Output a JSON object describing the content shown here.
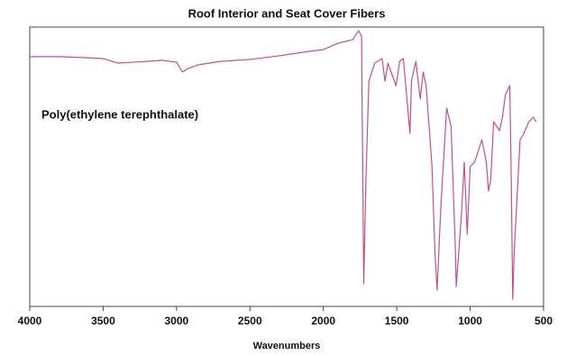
{
  "chart_data": {
    "type": "line",
    "title": "Roof Interior and Seat Cover Fibers",
    "annotation": "Poly(ethylene terephthalate)",
    "x_label": "Wavenumbers",
    "x": [
      4000,
      3800,
      3600,
      3500,
      3400,
      3300,
      3200,
      3100,
      3000,
      2960,
      2920,
      2850,
      2700,
      2500,
      2300,
      2100,
      2000,
      1900,
      1800,
      1760,
      1740,
      1725,
      1710,
      1690,
      1650,
      1600,
      1580,
      1560,
      1505,
      1480,
      1455,
      1410,
      1400,
      1370,
      1340,
      1320,
      1300,
      1260,
      1240,
      1225,
      1200,
      1160,
      1130,
      1100,
      1095,
      1060,
      1040,
      1020,
      1000,
      970,
      950,
      920,
      890,
      875,
      860,
      840,
      800,
      780,
      760,
      730,
      720,
      710,
      700,
      660,
      640,
      600,
      570,
      550
    ],
    "series": [
      {
        "name": "Poly(ethylene terephthalate)",
        "color": "#c0508e",
        "values": [
          89.4,
          89.4,
          89.0,
          88.7,
          87.1,
          87.4,
          87.7,
          88.1,
          87.4,
          83.9,
          85.2,
          86.5,
          87.7,
          88.4,
          89.7,
          91.3,
          91.9,
          94.2,
          95.5,
          98.7,
          96.8,
          8.1,
          45.2,
          80.6,
          87.1,
          88.7,
          80.6,
          87.1,
          79.0,
          87.7,
          88.7,
          61.9,
          80.6,
          87.7,
          74.2,
          83.9,
          79.0,
          50.0,
          19.4,
          5.8,
          35.5,
          71.0,
          64.5,
          19.4,
          7.1,
          32.3,
          51.6,
          25.8,
          50.0,
          51.6,
          54.8,
          59.7,
          51.6,
          41.3,
          45.2,
          66.1,
          62.9,
          67.7,
          75.8,
          79.0,
          45.2,
          2.6,
          19.4,
          59.7,
          61.3,
          66.1,
          67.7,
          66.1
        ]
      }
    ],
    "xlim": [
      4000,
      500
    ],
    "xticks": [
      4000,
      3500,
      3000,
      2500,
      2000,
      1500,
      1000,
      500
    ],
    "ylim": [
      0,
      100
    ],
    "grid": false
  }
}
